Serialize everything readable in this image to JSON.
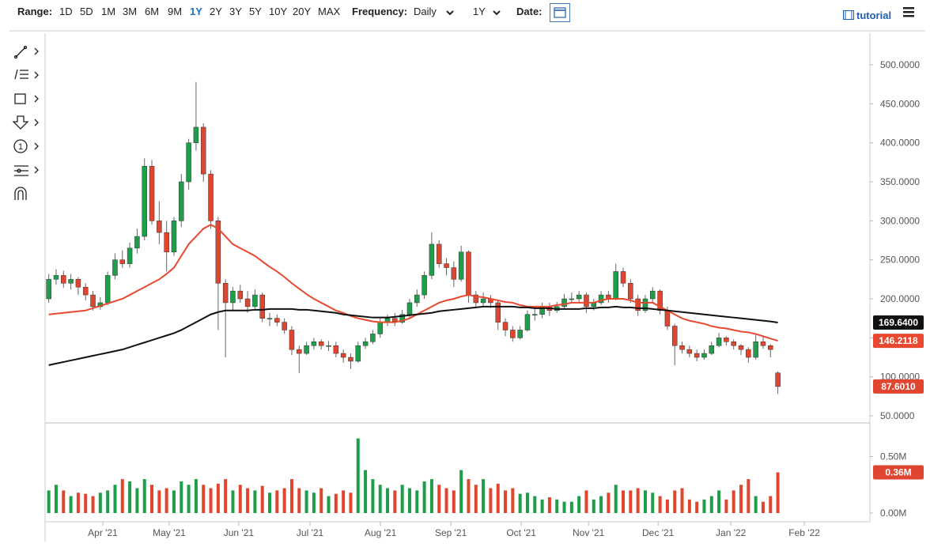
{
  "toolbar": {
    "range_label": "Range:",
    "ranges": [
      "1D",
      "5D",
      "1M",
      "3M",
      "6M",
      "9M",
      "1Y",
      "2Y",
      "3Y",
      "5Y",
      "10Y",
      "20Y",
      "MAX"
    ],
    "active_range_index": 6,
    "frequency_label": "Frequency:",
    "frequency": "Daily",
    "period": "1Y",
    "date_label": "Date:",
    "tutorial": "tutorial"
  },
  "chart_data": {
    "type": "candlestick",
    "xlim": [
      0,
      112
    ],
    "xticks": [
      {
        "value": 7.84,
        "label": "Apr '21"
      },
      {
        "value": 16.86,
        "label": "May '21"
      },
      {
        "value": 26.3,
        "label": "Jun '21"
      },
      {
        "value": 35.98,
        "label": "Jul '21"
      },
      {
        "value": 45.54,
        "label": "Aug '21"
      },
      {
        "value": 55.1,
        "label": "Sep '21"
      },
      {
        "value": 64.66,
        "label": "Oct '21"
      },
      {
        "value": 73.79,
        "label": "Nov '21"
      },
      {
        "value": 83.24,
        "label": "Dec '21"
      },
      {
        "value": 93.12,
        "label": "Jan '22"
      },
      {
        "value": 103.1,
        "label": "Feb '22"
      }
    ],
    "ylim": [
      40.9,
      540.5
    ],
    "yticks": [
      {
        "value": 50,
        "label": "50.0000"
      },
      {
        "value": 100,
        "label": "100.0000"
      },
      {
        "value": 150,
        "label": "150.0000"
      },
      {
        "value": 200,
        "label": "200.0000"
      },
      {
        "value": 250,
        "label": "250.0000"
      },
      {
        "value": 300,
        "label": "300.0000"
      },
      {
        "value": 350,
        "label": "350.0000"
      },
      {
        "value": 400,
        "label": "400.0000"
      },
      {
        "value": 450,
        "label": "450.0000"
      },
      {
        "value": 500,
        "label": "500.0000"
      }
    ],
    "up_color": "#1e9e4a",
    "down_color": "#e0452f",
    "candles": [
      [
        200,
        232,
        195,
        225
      ],
      [
        225,
        238,
        218,
        230
      ],
      [
        230,
        236,
        214,
        220
      ],
      [
        220,
        232,
        212,
        225
      ],
      [
        225,
        228,
        205,
        215
      ],
      [
        215,
        220,
        198,
        205
      ],
      [
        205,
        210,
        185,
        190
      ],
      [
        190,
        202,
        186,
        195
      ],
      [
        195,
        235,
        192,
        230
      ],
      [
        230,
        258,
        225,
        250
      ],
      [
        250,
        262,
        240,
        245
      ],
      [
        245,
        272,
        240,
        265
      ],
      [
        265,
        290,
        258,
        280
      ],
      [
        280,
        380,
        275,
        370
      ],
      [
        370,
        378,
        295,
        300
      ],
      [
        300,
        325,
        270,
        285
      ],
      [
        285,
        300,
        235,
        260
      ],
      [
        260,
        305,
        255,
        300
      ],
      [
        300,
        360,
        292,
        350
      ],
      [
        350,
        405,
        340,
        400
      ],
      [
        400,
        478,
        390,
        420
      ],
      [
        420,
        425,
        350,
        360
      ],
      [
        360,
        365,
        290,
        300
      ],
      [
        300,
        305,
        160,
        220
      ],
      [
        220,
        225,
        125,
        195
      ],
      [
        195,
        215,
        185,
        210
      ],
      [
        210,
        218,
        195,
        200
      ],
      [
        200,
        210,
        182,
        190
      ],
      [
        190,
        212,
        185,
        205
      ],
      [
        205,
        208,
        170,
        175
      ],
      [
        175,
        182,
        165,
        175
      ],
      [
        175,
        180,
        165,
        170
      ],
      [
        170,
        175,
        155,
        160
      ],
      [
        160,
        165,
        128,
        135
      ],
      [
        135,
        140,
        105,
        130
      ],
      [
        130,
        145,
        128,
        140
      ],
      [
        140,
        150,
        135,
        145
      ],
      [
        145,
        148,
        135,
        140
      ],
      [
        140,
        146,
        133,
        140
      ],
      [
        140,
        145,
        125,
        130
      ],
      [
        130,
        135,
        118,
        125
      ],
      [
        125,
        130,
        110,
        120
      ],
      [
        120,
        145,
        118,
        140
      ],
      [
        140,
        150,
        136,
        145
      ],
      [
        145,
        160,
        142,
        155
      ],
      [
        155,
        175,
        150,
        170
      ],
      [
        170,
        180,
        165,
        175
      ],
      [
        175,
        182,
        165,
        170
      ],
      [
        170,
        186,
        168,
        180
      ],
      [
        180,
        200,
        176,
        195
      ],
      [
        195,
        212,
        190,
        205
      ],
      [
        205,
        235,
        200,
        230
      ],
      [
        230,
        285,
        225,
        270
      ],
      [
        270,
        275,
        240,
        245
      ],
      [
        245,
        252,
        230,
        240
      ],
      [
        240,
        248,
        215,
        225
      ],
      [
        225,
        268,
        222,
        260
      ],
      [
        260,
        262,
        195,
        205
      ],
      [
        205,
        210,
        188,
        195
      ],
      [
        195,
        208,
        190,
        200
      ],
      [
        200,
        205,
        188,
        195
      ],
      [
        195,
        198,
        160,
        170
      ],
      [
        170,
        175,
        152,
        160
      ],
      [
        160,
        165,
        145,
        150
      ],
      [
        150,
        165,
        148,
        160
      ],
      [
        160,
        185,
        158,
        180
      ],
      [
        180,
        188,
        172,
        180
      ],
      [
        180,
        195,
        175,
        190
      ],
      [
        190,
        195,
        178,
        185
      ],
      [
        185,
        196,
        182,
        190
      ],
      [
        190,
        206,
        186,
        200
      ],
      [
        200,
        208,
        194,
        200
      ],
      [
        200,
        210,
        196,
        205
      ],
      [
        205,
        208,
        182,
        190
      ],
      [
        190,
        200,
        185,
        195
      ],
      [
        195,
        210,
        192,
        205
      ],
      [
        205,
        210,
        195,
        200
      ],
      [
        200,
        245,
        198,
        235
      ],
      [
        235,
        240,
        215,
        220
      ],
      [
        220,
        225,
        195,
        200
      ],
      [
        200,
        205,
        178,
        185
      ],
      [
        185,
        205,
        182,
        200
      ],
      [
        200,
        215,
        196,
        210
      ],
      [
        210,
        212,
        180,
        185
      ],
      [
        185,
        190,
        160,
        165
      ],
      [
        165,
        168,
        115,
        140
      ],
      [
        140,
        145,
        130,
        135
      ],
      [
        135,
        140,
        125,
        130
      ],
      [
        130,
        135,
        120,
        125
      ],
      [
        125,
        135,
        122,
        130
      ],
      [
        130,
        145,
        128,
        140
      ],
      [
        140,
        156,
        138,
        150
      ],
      [
        150,
        152,
        140,
        145
      ],
      [
        145,
        148,
        135,
        140
      ],
      [
        140,
        142,
        128,
        135
      ],
      [
        135,
        138,
        118,
        125
      ],
      [
        125,
        155,
        122,
        145
      ],
      [
        145,
        152,
        136,
        140
      ],
      [
        140,
        142,
        125,
        135
      ],
      [
        105,
        107,
        78,
        87.601
      ]
    ],
    "last_price_label": "87.6010",
    "moving_averages": [
      {
        "color": "#e8482f",
        "last_label": "146.2118",
        "values": [
          180,
          181,
          182,
          183,
          184,
          185,
          188,
          191,
          194,
          197,
          200,
          205,
          210,
          215,
          220,
          225,
          232,
          240,
          255,
          270,
          280,
          290,
          295,
          290,
          280,
          270,
          265,
          260,
          255,
          248,
          241,
          235,
          228,
          220,
          213,
          206,
          200,
          195,
          190,
          185,
          182,
          178,
          175,
          173,
          171,
          170,
          170,
          170,
          172,
          175,
          180,
          185,
          190,
          195,
          198,
          200,
          203,
          205,
          203,
          202,
          200,
          198,
          196,
          195,
          192,
          190,
          190,
          190,
          190,
          192,
          193,
          195,
          195,
          195,
          195,
          198,
          200,
          200,
          200,
          198,
          195,
          195,
          195,
          190,
          185,
          180,
          175,
          172,
          170,
          168,
          165,
          163,
          162,
          160,
          158,
          157,
          155,
          152,
          149,
          146.2118
        ]
      },
      {
        "color": "#111111",
        "last_label": "169.6400",
        "values": [
          115,
          117,
          119,
          121,
          123,
          125,
          127,
          129,
          131,
          133,
          135,
          138,
          141,
          144,
          147,
          150,
          153,
          156,
          160,
          165,
          170,
          175,
          180,
          183,
          185,
          185,
          185,
          185,
          186,
          186,
          187,
          187,
          187,
          187,
          186,
          186,
          185,
          184,
          183,
          182,
          180,
          179,
          178,
          177,
          176,
          176,
          176,
          177,
          178,
          179,
          180,
          181,
          182,
          184,
          185,
          186,
          187,
          188,
          189,
          190,
          190,
          190,
          190,
          190,
          189,
          189,
          188,
          188,
          188,
          187,
          187,
          187,
          187,
          188,
          188,
          189,
          189,
          190,
          189,
          189,
          188,
          188,
          187,
          186,
          185,
          184,
          183,
          182,
          181,
          180,
          179,
          178,
          177,
          176,
          175,
          174,
          173,
          172,
          171,
          169.64
        ]
      }
    ],
    "volume": {
      "ylim": [
        0,
        0.79
      ],
      "yticks": [
        {
          "value": 0,
          "label": "0.00M"
        },
        {
          "value": 0.5,
          "label": "0.50M"
        }
      ],
      "last_label": "0.36M",
      "values": [
        0.2,
        0.25,
        0.2,
        0.15,
        0.18,
        0.17,
        0.15,
        0.18,
        0.2,
        0.25,
        0.3,
        0.28,
        0.22,
        0.3,
        0.25,
        0.2,
        0.22,
        0.2,
        0.28,
        0.25,
        0.3,
        0.25,
        0.22,
        0.26,
        0.3,
        0.2,
        0.25,
        0.22,
        0.2,
        0.24,
        0.18,
        0.2,
        0.22,
        0.3,
        0.22,
        0.2,
        0.18,
        0.22,
        0.15,
        0.17,
        0.2,
        0.18,
        0.66,
        0.38,
        0.3,
        0.25,
        0.22,
        0.2,
        0.25,
        0.22,
        0.2,
        0.28,
        0.3,
        0.25,
        0.22,
        0.2,
        0.38,
        0.3,
        0.25,
        0.3,
        0.22,
        0.26,
        0.2,
        0.22,
        0.17,
        0.18,
        0.15,
        0.12,
        0.14,
        0.12,
        0.1,
        0.1,
        0.15,
        0.2,
        0.12,
        0.15,
        0.18,
        0.25,
        0.2,
        0.2,
        0.22,
        0.2,
        0.18,
        0.15,
        0.12,
        0.2,
        0.22,
        0.12,
        0.1,
        0.12,
        0.15,
        0.2,
        0.12,
        0.2,
        0.25,
        0.3,
        0.15,
        0.1,
        0.15,
        0.36
      ]
    }
  }
}
